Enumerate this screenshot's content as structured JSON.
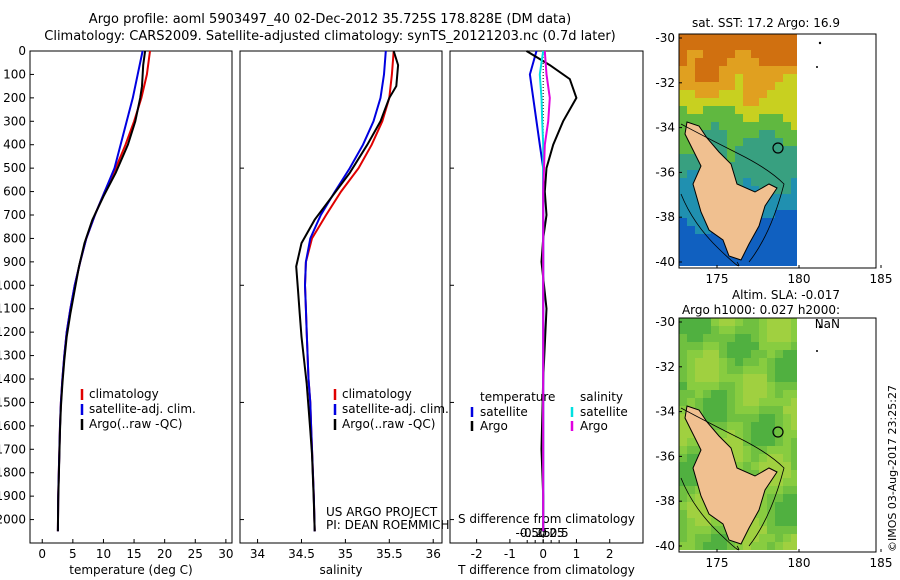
{
  "header": {
    "line1": "Argo profile: aoml 5903497_40 02-Dec-2012 35.725S 178.828E (DM data)",
    "line2": "Climatology: CARS2009. Satellite-adjusted climatology: synTS_20121203.nc (0.7d later)"
  },
  "chart_data": [
    {
      "id": "temperature-panel",
      "type": "line",
      "xlabel": "temperature (deg C)",
      "ylabel": "",
      "xlim": [
        -2,
        31
      ],
      "ylim": [
        2100,
        0
      ],
      "xticks": [
        0,
        5,
        10,
        15,
        20,
        25,
        30
      ],
      "yticks": [
        0,
        100,
        200,
        300,
        400,
        500,
        600,
        700,
        800,
        900,
        1000,
        1100,
        1200,
        1300,
        1400,
        1500,
        1600,
        1700,
        1800,
        1900,
        2000
      ],
      "legend": [
        "climatology",
        "satellite-adj. clim.",
        "Argo(..raw -QC)"
      ],
      "series": [
        {
          "name": "climatology",
          "color": "#e00000",
          "x": [
            17.6,
            17.1,
            16.2,
            15.0,
            13.6,
            12.0,
            10.2,
            8.6,
            7.2,
            6.2,
            5.3,
            4.6,
            4.0,
            3.6,
            3.3,
            3.05,
            2.9,
            2.8,
            2.7,
            2.6,
            2.55
          ],
          "y": [
            0,
            100,
            200,
            300,
            400,
            500,
            600,
            700,
            800,
            900,
            1000,
            1100,
            1200,
            1300,
            1400,
            1500,
            1600,
            1700,
            1800,
            1900,
            2050
          ]
        },
        {
          "name": "satellite-adj. clim.",
          "color": "#0000e0",
          "x": [
            16.4,
            15.6,
            14.8,
            13.8,
            12.8,
            11.8,
            10.2,
            8.6,
            7.2,
            6.2,
            5.3,
            4.6,
            4.0,
            3.6,
            3.3,
            3.05,
            2.9,
            2.8,
            2.7,
            2.6,
            2.55
          ],
          "y": [
            0,
            100,
            200,
            300,
            400,
            500,
            600,
            700,
            800,
            900,
            1000,
            1100,
            1200,
            1300,
            1400,
            1500,
            1600,
            1700,
            1800,
            1900,
            2050
          ]
        },
        {
          "name": "Argo(..raw -QC)",
          "color": "#000000",
          "x": [
            16.8,
            16.5,
            16.3,
            16.0,
            15.2,
            14.0,
            12.0,
            10.0,
            8.2,
            6.9,
            6.0,
            5.3,
            4.6,
            4.0,
            3.6,
            3.3,
            3.05,
            2.9,
            2.8,
            2.7,
            2.6,
            2.55
          ],
          "y": [
            0,
            60,
            150,
            200,
            300,
            400,
            520,
            620,
            720,
            820,
            920,
            1020,
            1120,
            1220,
            1320,
            1420,
            1520,
            1620,
            1720,
            1820,
            1920,
            2050
          ]
        }
      ]
    },
    {
      "id": "salinity-panel",
      "type": "line",
      "xlabel": "salinity",
      "xlim": [
        33.8,
        36.1
      ],
      "ylim": [
        2100,
        0
      ],
      "xticks": [
        34,
        34.5,
        35,
        35.5,
        36
      ],
      "xticklabels": [
        "34",
        "34.5",
        "35",
        "35.5",
        "36"
      ],
      "legend": [
        "climatology",
        "satellite-adj. clim.",
        "Argo(..raw -QC)"
      ],
      "annotations": [
        "US ARGO PROJECT",
        "PI: DEAN ROEMMICH"
      ],
      "series": [
        {
          "name": "climatology",
          "color": "#e00000",
          "x": [
            35.55,
            35.53,
            35.5,
            35.42,
            35.3,
            35.15,
            34.95,
            34.78,
            34.62,
            34.55,
            34.54,
            34.55,
            34.56,
            34.57,
            34.58,
            34.6,
            34.61,
            34.62,
            34.63,
            34.64,
            34.65
          ],
          "y": [
            0,
            100,
            200,
            300,
            400,
            500,
            600,
            700,
            800,
            900,
            1000,
            1100,
            1200,
            1300,
            1400,
            1500,
            1600,
            1700,
            1800,
            1900,
            2050
          ]
        },
        {
          "name": "satellite-adj. clim.",
          "color": "#0000e0",
          "x": [
            35.46,
            35.44,
            35.4,
            35.32,
            35.2,
            35.05,
            34.88,
            34.72,
            34.6,
            34.55,
            34.54,
            34.55,
            34.56,
            34.57,
            34.58,
            34.6,
            34.61,
            34.62,
            34.63,
            34.64,
            34.65
          ],
          "y": [
            0,
            100,
            200,
            300,
            400,
            500,
            600,
            700,
            800,
            900,
            1000,
            1100,
            1200,
            1300,
            1400,
            1500,
            1600,
            1700,
            1800,
            1900,
            2050
          ]
        },
        {
          "name": "Argo(..raw -QC)",
          "color": "#000000",
          "x": [
            35.55,
            35.6,
            35.58,
            35.5,
            35.4,
            35.25,
            35.05,
            34.85,
            34.65,
            34.5,
            34.44,
            34.46,
            34.48,
            34.5,
            34.53,
            34.56,
            34.58,
            34.6,
            34.62,
            34.63,
            34.64,
            34.65
          ],
          "y": [
            0,
            60,
            150,
            200,
            300,
            400,
            520,
            620,
            720,
            820,
            920,
            1020,
            1120,
            1220,
            1320,
            1420,
            1520,
            1620,
            1720,
            1820,
            1920,
            2050
          ]
        }
      ]
    },
    {
      "id": "difference-panel",
      "type": "line",
      "xlabel": "T difference from climatology",
      "xlabel_top": "S difference from climatology",
      "xlim": [
        -2.8,
        3.0
      ],
      "ylim": [
        2100,
        0
      ],
      "xticks": [
        -2,
        -1,
        0,
        1,
        2
      ],
      "top_xticks": [
        -0.5,
        -0.25,
        0,
        0.25,
        0.5
      ],
      "legend_headers": [
        "temperature",
        "salinity"
      ],
      "legend": [
        "satellite",
        "Argo",
        "satellite",
        "Argo"
      ],
      "series": [
        {
          "name": "satellite",
          "group": "temperature",
          "color": "#0000e0",
          "x": [
            -0.2,
            -0.4,
            -0.3,
            -0.2,
            -0.1,
            0.0,
            0.0,
            0.0,
            0.0,
            0.0,
            0.0,
            0.0,
            0.0,
            0.0,
            0.0
          ],
          "y": [
            0,
            100,
            200,
            300,
            400,
            500,
            600,
            700,
            800,
            900,
            1000,
            1200,
            1500,
            1800,
            2050
          ]
        },
        {
          "name": "Argo",
          "group": "temperature",
          "color": "#000000",
          "x": [
            -0.5,
            0.2,
            0.8,
            1.0,
            0.6,
            0.3,
            0.1,
            0.05,
            0.1,
            0.0,
            -0.05,
            0.1,
            0.0,
            -0.05,
            0.0,
            0.0
          ],
          "y": [
            0,
            60,
            120,
            200,
            300,
            400,
            500,
            600,
            700,
            800,
            900,
            1100,
            1400,
            1700,
            1900,
            2050
          ]
        },
        {
          "name": "satellite",
          "group": "salinity",
          "color": "#00e0e0",
          "x": [
            0.0,
            -0.1,
            -0.05,
            -0.03,
            0.0,
            0.0,
            0.0,
            0.0,
            0.0,
            0.0,
            0.0
          ],
          "y": [
            0,
            100,
            200,
            300,
            400,
            600,
            800,
            1000,
            1400,
            1800,
            2050
          ]
        },
        {
          "name": "Argo",
          "group": "salinity",
          "color": "#e000e0",
          "x": [
            0.05,
            0.1,
            0.2,
            0.15,
            0.05,
            0.0,
            0.0,
            0.0,
            0.0,
            0.0,
            0.0
          ],
          "y": [
            0,
            100,
            200,
            300,
            400,
            600,
            800,
            1000,
            1400,
            1800,
            2050
          ]
        }
      ]
    }
  ],
  "maps": {
    "sst": {
      "title": "sat. SST: 17.2 Argo: 16.9",
      "yticks": [
        "-30",
        "-32",
        "-34",
        "-36",
        "-38",
        "-40"
      ],
      "xticks": [
        "175",
        "180",
        "185"
      ]
    },
    "sla": {
      "title1": "Altim. SLA: -0.017",
      "title2": "Argo h1000: 0.027 h2000: NaN",
      "yticks": [
        "-30",
        "-32",
        "-34",
        "-36",
        "-38",
        "-40"
      ],
      "xticks": [
        "175",
        "180",
        "185"
      ]
    }
  },
  "stamp": "©IMOS 03-Aug-2017 23:25:27"
}
